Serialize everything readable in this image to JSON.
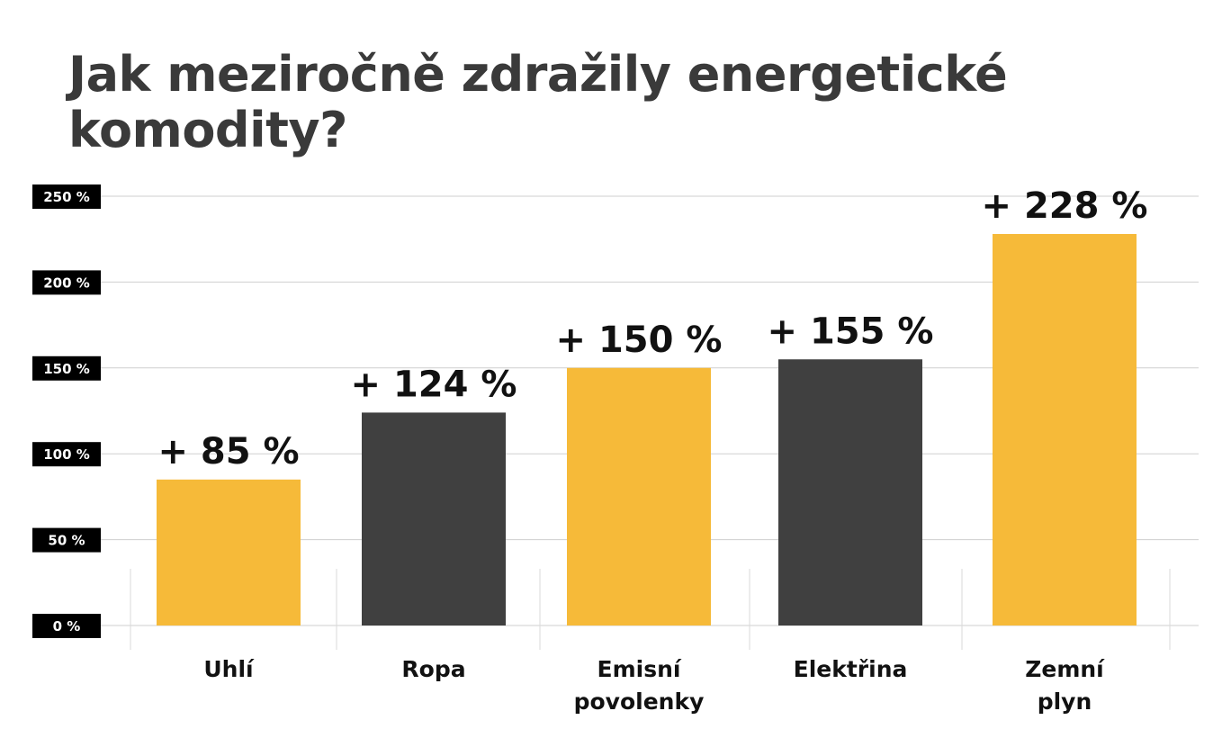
{
  "chart_data": {
    "type": "bar",
    "title": "Jak meziročně zdražily energetické komodity?",
    "xlabel": "",
    "ylabel": "",
    "ylim": [
      0,
      250
    ],
    "yticks": [
      0,
      50,
      100,
      150,
      200,
      250
    ],
    "ytick_labels": [
      "0 %",
      "50 %",
      "100 %",
      "150 %",
      "200 %",
      "250 %"
    ],
    "categories": [
      [
        "Uhlí"
      ],
      [
        "Ropa"
      ],
      [
        "Emisní",
        "povolenky"
      ],
      [
        "Elektřina"
      ],
      [
        "Zemní",
        "plyn"
      ]
    ],
    "values": [
      85,
      124,
      150,
      155,
      228
    ],
    "data_labels": [
      "+ 85 %",
      "+ 124 %",
      "+ 150 %",
      "+ 155 %",
      "+ 228 %"
    ],
    "colors": [
      "#F6BA39",
      "#404040",
      "#F6BA39",
      "#404040",
      "#F6BA39"
    ],
    "grid": true,
    "legend": "none"
  }
}
